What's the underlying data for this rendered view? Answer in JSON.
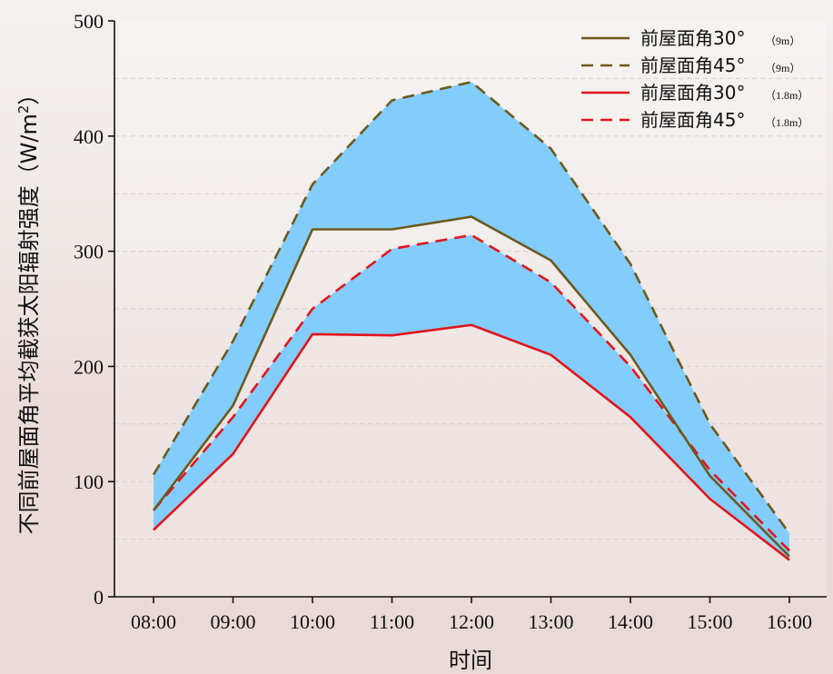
{
  "chart_data": {
    "type": "line",
    "xlabel": "时间",
    "ylabel": "不同前屋面角平均截获太阳辐射强度（W/m²）",
    "ylabel_main": "不同前屋面角平均截获太阳辐射强度（W/m",
    "ylabel_sup": "2",
    "ylabel_end": "）",
    "categories": [
      "08:00",
      "09:00",
      "10:00",
      "11:00",
      "12:00",
      "13:00",
      "14:00",
      "15:00",
      "16:00"
    ],
    "ylim": [
      0,
      500
    ],
    "yticks": [
      0,
      100,
      200,
      300,
      400,
      500
    ],
    "grid": "horizontal-dashed",
    "legend_position": "top-right",
    "series": [
      {
        "name": "前屋面角30°",
        "sub": "（9m）",
        "color": "#6b5a1e",
        "dash": "solid",
        "values": [
          75,
          166,
          319,
          319,
          330,
          292,
          210,
          105,
          35
        ]
      },
      {
        "name": "前屋面角45°",
        "sub": "（9m）",
        "color": "#6b5a1e",
        "dash": "dashed",
        "values": [
          106,
          222,
          358,
          431,
          447,
          389,
          289,
          150,
          55
        ]
      },
      {
        "name": "前屋面角30°",
        "sub": "（1.8m）",
        "color": "#e3141b",
        "dash": "solid",
        "values": [
          58,
          124,
          228,
          227,
          236,
          210,
          156,
          85,
          32
        ]
      },
      {
        "name": "前屋面角45°",
        "sub": "（1.8m）",
        "color": "#e3141b",
        "dash": "dashed",
        "values": [
          75,
          156,
          250,
          302,
          314,
          273,
          200,
          110,
          40
        ]
      }
    ],
    "fill_color": "#82cdfc"
  }
}
